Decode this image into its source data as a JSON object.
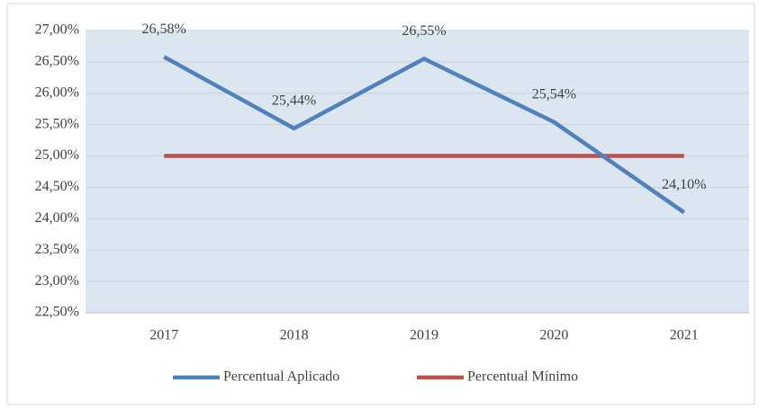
{
  "chart_data": {
    "type": "line",
    "categories": [
      "2017",
      "2018",
      "2019",
      "2020",
      "2021"
    ],
    "series": [
      {
        "name": "Percentual Aplicado",
        "color": "#4f81bd",
        "values": [
          26.58,
          25.44,
          26.55,
          25.54,
          24.1
        ],
        "value_labels": [
          "26,58%",
          "25,44%",
          "26,55%",
          "25,54%",
          "24,10%"
        ]
      },
      {
        "name": "Percentual Mínimo",
        "color": "#c0504d",
        "values": [
          25,
          25,
          25,
          25,
          25
        ]
      }
    ],
    "ylim": [
      22.5,
      27
    ],
    "yticks": [
      {
        "value": 22.5,
        "label": "22,50%"
      },
      {
        "value": 23,
        "label": "23,00%"
      },
      {
        "value": 23.5,
        "label": "23,50%"
      },
      {
        "value": 24,
        "label": "24,00%"
      },
      {
        "value": 24.5,
        "label": "24,50%"
      },
      {
        "value": 25,
        "label": "25,00%"
      },
      {
        "value": 25.5,
        "label": "25,50%"
      },
      {
        "value": 26,
        "label": "26,00%"
      },
      {
        "value": 26.5,
        "label": "26,50%"
      },
      {
        "value": 27,
        "label": "27,00%"
      }
    ],
    "grid": true,
    "legend": "bottom"
  }
}
